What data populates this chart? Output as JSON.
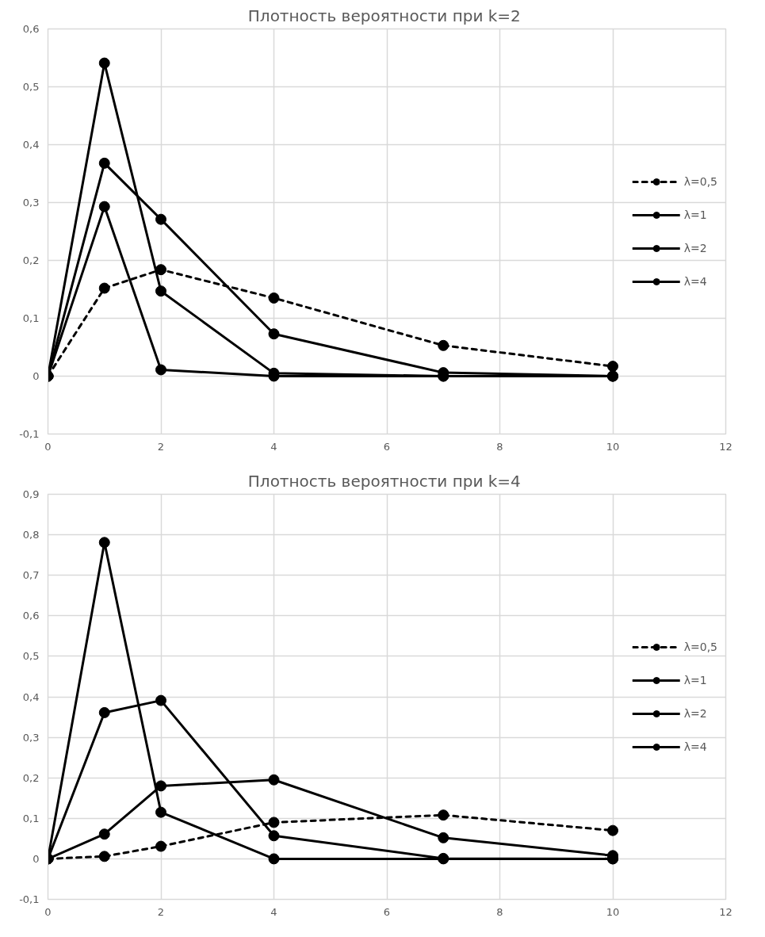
{
  "chart_data": [
    {
      "type": "line",
      "title": "Плотность вероятности  при k=2",
      "x": [
        0,
        1,
        2,
        4,
        7,
        10
      ],
      "series": [
        {
          "name": "λ=0,5",
          "color": "#000000",
          "line_style": "dashed",
          "values": [
            0,
            0.152,
            0.184,
            0.135,
            0.053,
            0.017
          ]
        },
        {
          "name": "λ=1",
          "color": "#000000",
          "line_style": "solid",
          "values": [
            0,
            0.368,
            0.271,
            0.073,
            0.006,
            0.0
          ]
        },
        {
          "name": "λ=2",
          "color": "#000000",
          "line_style": "solid",
          "values": [
            0,
            0.541,
            0.147,
            0.005,
            0.0,
            0.0
          ]
        },
        {
          "name": "λ=4",
          "color": "#000000",
          "line_style": "solid",
          "values": [
            0,
            0.293,
            0.011,
            0.0,
            0.0,
            0.0
          ]
        }
      ],
      "marker": "circle",
      "grid": true,
      "legend": "right",
      "xlim": [
        0,
        12
      ],
      "xticks": [
        0,
        2,
        4,
        6,
        8,
        10,
        12
      ],
      "ylim": [
        -0.1,
        0.6
      ],
      "yticks": [
        {
          "value": -0.1,
          "label": "-0,1"
        },
        0,
        {
          "value": 0.1,
          "label": "0,1"
        },
        {
          "value": 0.2,
          "label": "0,2"
        },
        {
          "value": 0.3,
          "label": "0,3"
        },
        {
          "value": 0.4,
          "label": "0,4"
        },
        {
          "value": 0.5,
          "label": "0,5"
        },
        {
          "value": 0.6,
          "label": "0,6"
        }
      ]
    },
    {
      "type": "line",
      "title": "Плотность вероятности  при k=4",
      "x": [
        0,
        1,
        2,
        4,
        7,
        10
      ],
      "series": [
        {
          "name": "λ=0,5",
          "color": "#000000",
          "line_style": "dashed",
          "values": [
            0,
            0.006,
            0.031,
            0.09,
            0.108,
            0.07
          ]
        },
        {
          "name": "λ=1",
          "color": "#000000",
          "line_style": "solid",
          "values": [
            0,
            0.061,
            0.18,
            0.195,
            0.052,
            0.008
          ]
        },
        {
          "name": "λ=2",
          "color": "#000000",
          "line_style": "solid",
          "values": [
            0,
            0.361,
            0.391,
            0.057,
            0.001,
            0.0
          ]
        },
        {
          "name": "λ=4",
          "color": "#000000",
          "line_style": "solid",
          "values": [
            0,
            0.781,
            0.115,
            0.0,
            0.0,
            0.0
          ]
        }
      ],
      "marker": "circle",
      "grid": true,
      "legend": "right",
      "xlim": [
        0,
        12
      ],
      "xticks": [
        0,
        2,
        4,
        6,
        8,
        10,
        12
      ],
      "ylim": [
        -0.1,
        0.9
      ],
      "yticks": [
        {
          "value": -0.1,
          "label": "-0,1"
        },
        0,
        {
          "value": 0.1,
          "label": "0,1"
        },
        {
          "value": 0.2,
          "label": "0,2"
        },
        {
          "value": 0.3,
          "label": "0,3"
        },
        {
          "value": 0.4,
          "label": "0,4"
        },
        {
          "value": 0.5,
          "label": "0,5"
        },
        {
          "value": 0.6,
          "label": "0,6"
        },
        {
          "value": 0.7,
          "label": "0,7"
        },
        {
          "value": 0.8,
          "label": "0,8"
        },
        {
          "value": 0.9,
          "label": "0,9"
        }
      ]
    }
  ]
}
